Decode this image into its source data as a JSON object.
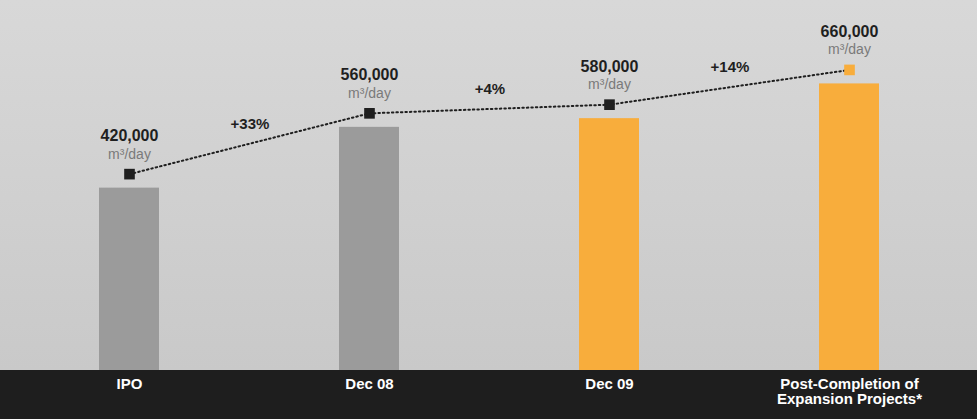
{
  "chart_data": {
    "type": "bar",
    "categories": [
      "IPO",
      "Dec 08",
      "Dec 09",
      "Post-Completion of Expansion Projects*"
    ],
    "values": [
      420000,
      560000,
      580000,
      660000
    ],
    "value_labels": [
      "420,000",
      "560,000",
      "580,000",
      "660,000"
    ],
    "ylabel": "m³/day",
    "colors": [
      "#9b9b9b",
      "#9b9b9b",
      "#f8ad3c",
      "#f8ad3c"
    ],
    "annotations": [
      "+33%",
      "+4%",
      "+14%"
    ],
    "ylim": [
      0,
      760000
    ],
    "data_labels": true,
    "tick_labels": "x",
    "marker": "square",
    "line_style": "dotted"
  }
}
